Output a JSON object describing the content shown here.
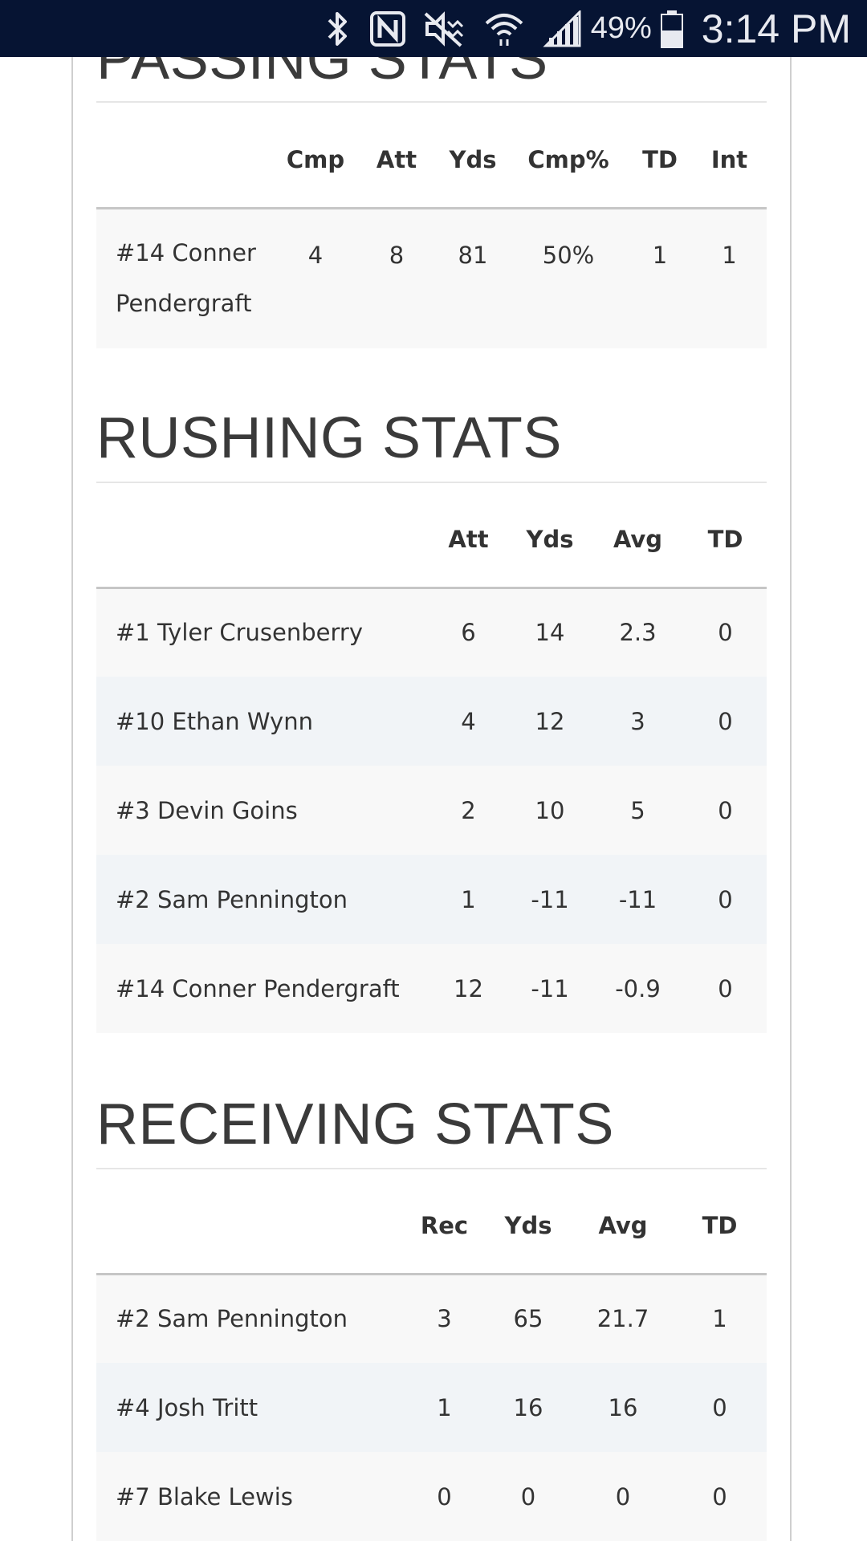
{
  "status_bar": {
    "battery": "49%",
    "time": "3:14 PM",
    "icons": [
      "bluetooth-icon",
      "nfc-icon",
      "mute-icon",
      "wifi-icon",
      "signal-icon",
      "battery-icon"
    ]
  },
  "passing": {
    "title": "PASSING STATS",
    "headers": [
      "",
      "Cmp",
      "Att",
      "Yds",
      "Cmp%",
      "TD",
      "Int"
    ],
    "rows": [
      {
        "name_line1": "#14 Conner",
        "name_line2": "Pendergraft",
        "cmp": "4",
        "att": "8",
        "yds": "81",
        "pct": "50%",
        "td": "1",
        "int": "1"
      }
    ]
  },
  "rushing": {
    "title": "RUSHING STATS",
    "headers": [
      "",
      "Att",
      "Yds",
      "Avg",
      "TD"
    ],
    "rows": [
      {
        "name": "#1 Tyler Crusenberry",
        "att": "6",
        "yds": "14",
        "avg": "2.3",
        "td": "0"
      },
      {
        "name": "#10 Ethan Wynn",
        "att": "4",
        "yds": "12",
        "avg": "3",
        "td": "0"
      },
      {
        "name": "#3 Devin Goins",
        "att": "2",
        "yds": "10",
        "avg": "5",
        "td": "0"
      },
      {
        "name": "#2 Sam Pennington",
        "att": "1",
        "yds": "-11",
        "avg": "-11",
        "td": "0"
      },
      {
        "name": "#14 Conner Pendergraft",
        "att": "12",
        "yds": "-11",
        "avg": "-0.9",
        "td": "0"
      }
    ]
  },
  "receiving": {
    "title": "RECEIVING STATS",
    "headers": [
      "",
      "Rec",
      "Yds",
      "Avg",
      "TD"
    ],
    "rows": [
      {
        "name": "#2 Sam Pennington",
        "rec": "3",
        "yds": "65",
        "avg": "21.7",
        "td": "1"
      },
      {
        "name": "#4 Josh Tritt",
        "rec": "1",
        "yds": "16",
        "avg": "16",
        "td": "0"
      },
      {
        "name": "#7 Blake Lewis",
        "rec": "0",
        "yds": "0",
        "avg": "0",
        "td": "0"
      }
    ]
  }
}
